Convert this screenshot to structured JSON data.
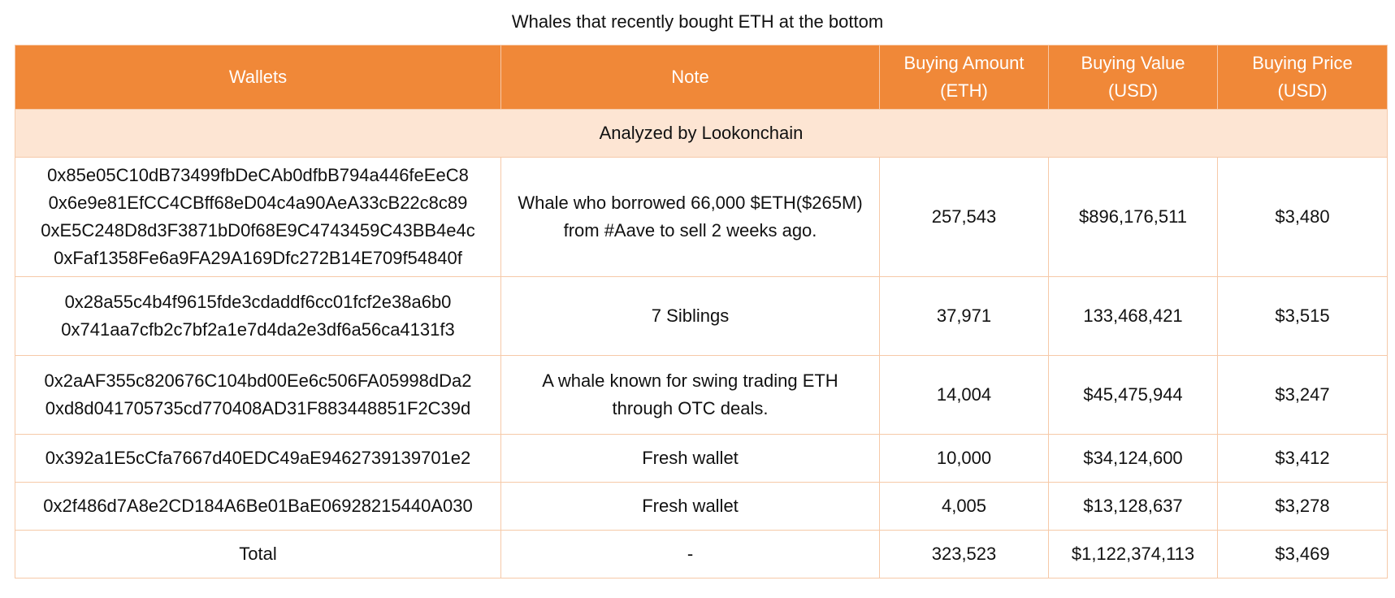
{
  "title": "Whales that recently bought ETH at the bottom",
  "colors": {
    "header_bg": "#f08838",
    "subheader_bg": "#fde5d3",
    "border": "#f6c9a8"
  },
  "columns": {
    "wallets": "Wallets",
    "note": "Note",
    "amount_line1": "Buying Amount",
    "amount_line2": "(ETH)",
    "value_line1": "Buying Value",
    "value_line2": "(USD)",
    "price_line1": "Buying Price",
    "price_line2": "(USD)"
  },
  "subheader": "Analyzed by Lookonchain",
  "rows": [
    {
      "wallets": [
        "0x85e05C10dB73499fbDeCAb0dfbB794a446feEeC8",
        "0x6e9e81EfCC4CBff68eD04c4a90AeA33cB22c8c89",
        "0xE5C248D8d3F3871bD0f68E9C4743459C43BB4e4c",
        "0xFaf1358Fe6a9FA29A169Dfc272B14E709f54840f"
      ],
      "note": [
        "Whale who borrowed 66,000 $ETH($265M)",
        "from #Aave to sell 2 weeks ago."
      ],
      "amount": "257,543",
      "value": "$896,176,511",
      "price": "$3,480"
    },
    {
      "wallets": [
        "0x28a55c4b4f9615fde3cdaddf6cc01fcf2e38a6b0",
        "0x741aa7cfb2c7bf2a1e7d4da2e3df6a56ca4131f3"
      ],
      "note": [
        "7 Siblings"
      ],
      "amount": "37,971",
      "value": "133,468,421",
      "price": "$3,515"
    },
    {
      "wallets": [
        "0x2aAF355c820676C104bd00Ee6c506FA05998dDa2",
        "0xd8d041705735cd770408AD31F883448851F2C39d"
      ],
      "note": [
        "A whale known for swing trading ETH",
        "through OTC deals."
      ],
      "amount": "14,004",
      "value": "$45,475,944",
      "price": "$3,247"
    },
    {
      "wallets": [
        "0x392a1E5cCfa7667d40EDC49aE9462739139701e2"
      ],
      "note": [
        "Fresh wallet"
      ],
      "amount": "10,000",
      "value": "$34,124,600",
      "price": "$3,412"
    },
    {
      "wallets": [
        "0x2f486d7A8e2CD184A6Be01BaE06928215440A030"
      ],
      "note": [
        "Fresh wallet"
      ],
      "amount": "4,005",
      "value": "$13,128,637",
      "price": "$3,278"
    }
  ],
  "total": {
    "label": "Total",
    "note": "-",
    "amount": "323,523",
    "value": "$1,122,374,113",
    "price": "$3,469"
  }
}
